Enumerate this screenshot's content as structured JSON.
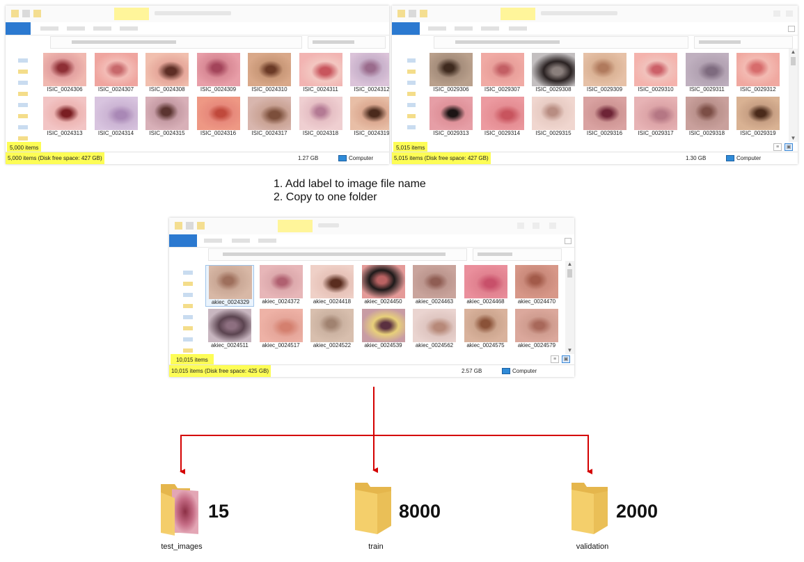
{
  "windows": [
    {
      "id": "win-a",
      "items_count": "5,000 items",
      "status_items": "5,000 items (Disk free space: 427 GB)",
      "status_size": "1.27 GB",
      "status_location": "Computer",
      "thumbnails": [
        {
          "label": "ISIC_0024306",
          "colors": [
            "#f0b8b0",
            "#8e2f35",
            "#e3a1a0"
          ]
        },
        {
          "label": "ISIC_0024307",
          "colors": [
            "#efa59f",
            "#c7686b",
            "#f3bcb6"
          ]
        },
        {
          "label": "ISIC_0024308",
          "colors": [
            "#f1bfae",
            "#5e2e25",
            "#e6a89b"
          ]
        },
        {
          "label": "ISIC_0024309",
          "colors": [
            "#e89ea8",
            "#a3445a",
            "#d98a96"
          ]
        },
        {
          "label": "ISIC_0024310",
          "colors": [
            "#d9a889",
            "#6b3a26",
            "#c99878"
          ]
        },
        {
          "label": "ISIC_0024311",
          "colors": [
            "#f2b4b2",
            "#c8555d",
            "#f3c7c1"
          ]
        },
        {
          "label": "ISIC_0024312",
          "colors": [
            "#dbc3d9",
            "#9a6b8c",
            "#c9b2cb"
          ]
        },
        {
          "label": "ISIC_0024313",
          "colors": [
            "#f2c4c4",
            "#7a1e22",
            "#edb5b3"
          ]
        },
        {
          "label": "ISIC_0024314",
          "colors": [
            "#d8c4df",
            "#a988b6",
            "#ccb5d4"
          ]
        },
        {
          "label": "ISIC_0024315",
          "colors": [
            "#d8b0b8",
            "#5b3430",
            "#c69ca5"
          ]
        },
        {
          "label": "ISIC_0024316",
          "colors": [
            "#ee9884",
            "#c0493c",
            "#e78a7c"
          ]
        },
        {
          "label": "ISIC_0024317",
          "colors": [
            "#d8b6ae",
            "#7c4f3b",
            "#caa395"
          ]
        },
        {
          "label": "ISIC_0024318",
          "colors": [
            "#efcfd1",
            "#b47a94",
            "#e6c0c5"
          ]
        },
        {
          "label": "ISIC_0024319",
          "colors": [
            "#e8bea6",
            "#4a2a1c",
            "#dcaa92"
          ]
        }
      ]
    },
    {
      "id": "win-b",
      "items_count": "5,015 items",
      "status_items": "5,015 items (Disk free space: 427 GB)",
      "status_size": "1.30 GB",
      "status_location": "Computer",
      "thumbnails": [
        {
          "label": "ISIC_0029306",
          "colors": [
            "#b9a08c",
            "#3e2a1e",
            "#a68e7c"
          ]
        },
        {
          "label": "ISIC_0029307",
          "colors": [
            "#f0aaa4",
            "#c35f64",
            "#e9a09b"
          ]
        },
        {
          "label": "ISIC_0029308",
          "colors": [
            "#c3bfc0",
            "#8a7f7c",
            "#2a2222"
          ]
        },
        {
          "label": "ISIC_0029309",
          "colors": [
            "#e6c1a7",
            "#b07a5d",
            "#dbb396"
          ]
        },
        {
          "label": "ISIC_0029310",
          "colors": [
            "#f4b3ad",
            "#cc6068",
            "#f1c2bc"
          ]
        },
        {
          "label": "ISIC_0029311",
          "colors": [
            "#bfb0bf",
            "#7e6b7f",
            "#b3a3b3"
          ]
        },
        {
          "label": "ISIC_0029312",
          "colors": [
            "#f0a8a0",
            "#d76c6c",
            "#f3bab2"
          ]
        },
        {
          "label": "ISIC_0029313",
          "colors": [
            "#e69ea6",
            "#1c1414",
            "#df929a"
          ]
        },
        {
          "label": "ISIC_0029314",
          "colors": [
            "#ec9aa0",
            "#c8545e",
            "#e58e94"
          ]
        },
        {
          "label": "ISIC_0029315",
          "colors": [
            "#f0d6cf",
            "#b88d82",
            "#e8ccc4"
          ]
        },
        {
          "label": "ISIC_0029316",
          "colors": [
            "#d9a2a1",
            "#6e2436",
            "#cf9695"
          ]
        },
        {
          "label": "ISIC_0029317",
          "colors": [
            "#e7b3b5",
            "#b57784",
            "#dda5a8"
          ]
        },
        {
          "label": "ISIC_0029318",
          "colors": [
            "#c9a09c",
            "#7c4e46",
            "#bb928d"
          ]
        },
        {
          "label": "ISIC_0029319",
          "colors": [
            "#d9b293",
            "#4a2a1a",
            "#c8a084"
          ]
        }
      ]
    },
    {
      "id": "win-c",
      "items_count": "10,015 items",
      "status_items": "10,015 items (Disk free space: 425 GB)",
      "status_size": "2.57 GB",
      "status_location": "Computer",
      "thumbnails": [
        {
          "label": "akiec_0024329",
          "colors": [
            "#d8b8a6",
            "#9e6f5c",
            "#cba997"
          ]
        },
        {
          "label": "akiec_0024372",
          "colors": [
            "#e7b6b8",
            "#b06070",
            "#ddaaad"
          ]
        },
        {
          "label": "akiec_0024418",
          "colors": [
            "#efd0c7",
            "#5a2d1f",
            "#e7c3b9"
          ]
        },
        {
          "label": "akiec_0024450",
          "colors": [
            "#e49a98",
            "#b96262",
            "#1e1a1a"
          ]
        },
        {
          "label": "akiec_0024463",
          "colors": [
            "#c9a49c",
            "#8f5d53",
            "#bd978f"
          ]
        },
        {
          "label": "akiec_0024468",
          "colors": [
            "#ea8f9c",
            "#c8506a",
            "#e18290"
          ]
        },
        {
          "label": "akiec_0024470",
          "colors": [
            "#d79788",
            "#a25a49",
            "#cb8b7c"
          ]
        },
        {
          "label": "akiec_0024511",
          "colors": [
            "#c8b6c0",
            "#8d6f80",
            "#5b4450"
          ]
        },
        {
          "label": "akiec_0024517",
          "colors": [
            "#eeb2a6",
            "#d4806f",
            "#e6a79b"
          ]
        },
        {
          "label": "akiec_0024522",
          "colors": [
            "#d8bfae",
            "#a08270",
            "#ccb3a2"
          ]
        },
        {
          "label": "akiec_0024539",
          "colors": [
            "#c89ca4",
            "#5a3040",
            "#e8d07a"
          ]
        },
        {
          "label": "akiec_0024562",
          "colors": [
            "#ead4d0",
            "#b78979",
            "#dfc6c1"
          ]
        },
        {
          "label": "akiec_0024575",
          "colors": [
            "#d9b29c",
            "#8a5238",
            "#cda68f"
          ]
        },
        {
          "label": "akiec_0024579",
          "colors": [
            "#dba89c",
            "#a8685a",
            "#d09d90"
          ]
        }
      ]
    }
  ],
  "steps": [
    "1. Add label to image file name",
    "2. Copy to one folder"
  ],
  "folders": [
    {
      "name": "test_images",
      "count": "15"
    },
    {
      "name": "train",
      "count": "8000"
    },
    {
      "name": "validation",
      "count": "2000"
    }
  ],
  "colors": {
    "arrow": "#d40000",
    "highlight": "#fdfd56",
    "folder": "#f4cf6b",
    "folder_dark": "#e5b64c"
  },
  "icons": [
    "folder-icon",
    "computer-icon",
    "details-view-icon",
    "large-icons-view-icon",
    "scroll-up-icon",
    "scroll-down-icon"
  ]
}
